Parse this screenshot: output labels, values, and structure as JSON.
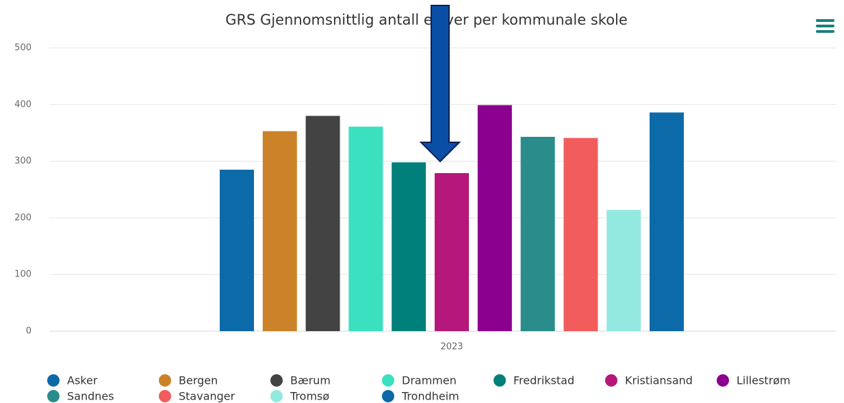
{
  "chart_data": {
    "type": "bar",
    "title": "GRS Gjennomsnittlig antall elever per kommunale skole",
    "categories": [
      "2023"
    ],
    "series": [
      {
        "name": "Asker",
        "color": "#0d6aa8",
        "values": [
          285
        ]
      },
      {
        "name": "Bergen",
        "color": "#cc8229",
        "values": [
          353
        ]
      },
      {
        "name": "Bærum",
        "color": "#434343",
        "values": [
          380
        ]
      },
      {
        "name": "Drammen",
        "color": "#3ae0c0",
        "values": [
          361
        ]
      },
      {
        "name": "Fredrikstad",
        "color": "#00807a",
        "values": [
          298
        ]
      },
      {
        "name": "Kristiansand",
        "color": "#b5187a",
        "values": [
          279
        ]
      },
      {
        "name": "Lillestrøm",
        "color": "#8b008f",
        "values": [
          399
        ]
      },
      {
        "name": "Sandnes",
        "color": "#2b8c8c",
        "values": [
          343
        ]
      },
      {
        "name": "Stavanger",
        "color": "#f25c5c",
        "values": [
          341
        ]
      },
      {
        "name": "Tromsø",
        "color": "#93e9e0",
        "values": [
          214
        ]
      },
      {
        "name": "Trondheim",
        "color": "#0d6aa8",
        "values": [
          386
        ]
      }
    ],
    "ylim": [
      0,
      500
    ],
    "yticks": [
      0,
      100,
      200,
      300,
      400,
      500
    ],
    "grid": true,
    "legend": "bottom"
  }
}
